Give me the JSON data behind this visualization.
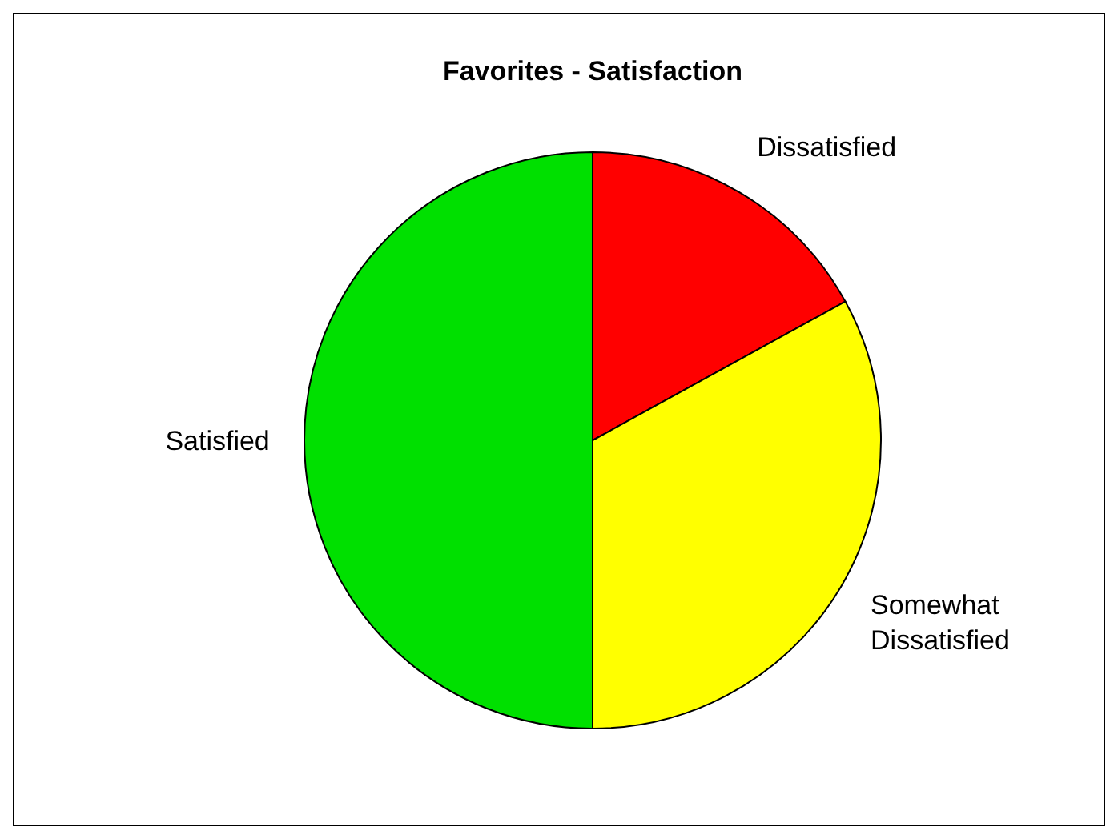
{
  "chart_data": {
    "type": "pie",
    "title": "Favorites - Satisfaction",
    "categories": [
      "Dissatisfied",
      "Somewhat Dissatisfied",
      "Satisfied"
    ],
    "values": [
      17,
      33,
      50
    ],
    "colors": [
      "#ff0000",
      "#ffff00",
      "#00e000"
    ]
  }
}
